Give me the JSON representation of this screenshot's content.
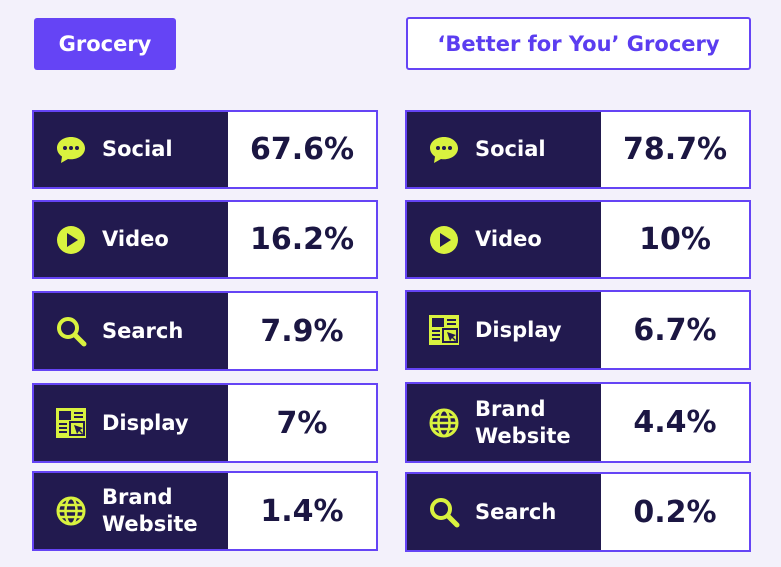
{
  "headers": {
    "left": "Grocery",
    "right": "‘Better for You’ Grocery"
  },
  "colors": {
    "accent": "#6544f5",
    "dark": "#221a4f",
    "icon": "#d9f23f"
  },
  "left_rows": [
    {
      "label": "Social",
      "value": "67.6%",
      "icon": "chat-bubble-icon"
    },
    {
      "label": "Video",
      "value": "16.2%",
      "icon": "play-icon"
    },
    {
      "label": "Search",
      "value": "7.9%",
      "icon": "search-icon"
    },
    {
      "label": "Display",
      "value": "7%",
      "icon": "display-ad-icon"
    },
    {
      "label": "Brand\nWebsite",
      "value": "1.4%",
      "icon": "globe-icon"
    }
  ],
  "right_rows": [
    {
      "label": "Social",
      "value": "78.7%",
      "icon": "chat-bubble-icon"
    },
    {
      "label": "Video",
      "value": "10%",
      "icon": "play-icon"
    },
    {
      "label": "Display",
      "value": "6.7%",
      "icon": "display-ad-icon"
    },
    {
      "label": "Brand\nWebsite",
      "value": "4.4%",
      "icon": "globe-icon"
    },
    {
      "label": "Search",
      "value": "0.2%",
      "icon": "search-icon"
    }
  ]
}
